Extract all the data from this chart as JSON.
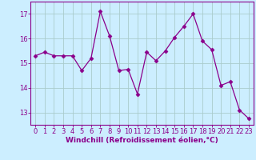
{
  "x": [
    0,
    1,
    2,
    3,
    4,
    5,
    6,
    7,
    8,
    9,
    10,
    11,
    12,
    13,
    14,
    15,
    16,
    17,
    18,
    19,
    20,
    21,
    22,
    23
  ],
  "y": [
    15.3,
    15.45,
    15.3,
    15.3,
    15.3,
    14.7,
    15.2,
    17.1,
    16.1,
    14.7,
    14.75,
    13.75,
    15.45,
    15.1,
    15.5,
    16.05,
    16.5,
    17.0,
    15.9,
    15.55,
    14.1,
    14.25,
    13.1,
    12.75
  ],
  "line_color": "#8b008b",
  "marker": "D",
  "markersize": 2.5,
  "bg_color": "#cceeff",
  "grid_color": "#aacccc",
  "xlabel": "Windchill (Refroidissement éolien,°C)",
  "ylim": [
    12.5,
    17.5
  ],
  "yticks": [
    13,
    14,
    15,
    16,
    17
  ],
  "xticks": [
    0,
    1,
    2,
    3,
    4,
    5,
    6,
    7,
    8,
    9,
    10,
    11,
    12,
    13,
    14,
    15,
    16,
    17,
    18,
    19,
    20,
    21,
    22,
    23
  ],
  "axis_fontsize": 6.5,
  "tick_fontsize": 6
}
